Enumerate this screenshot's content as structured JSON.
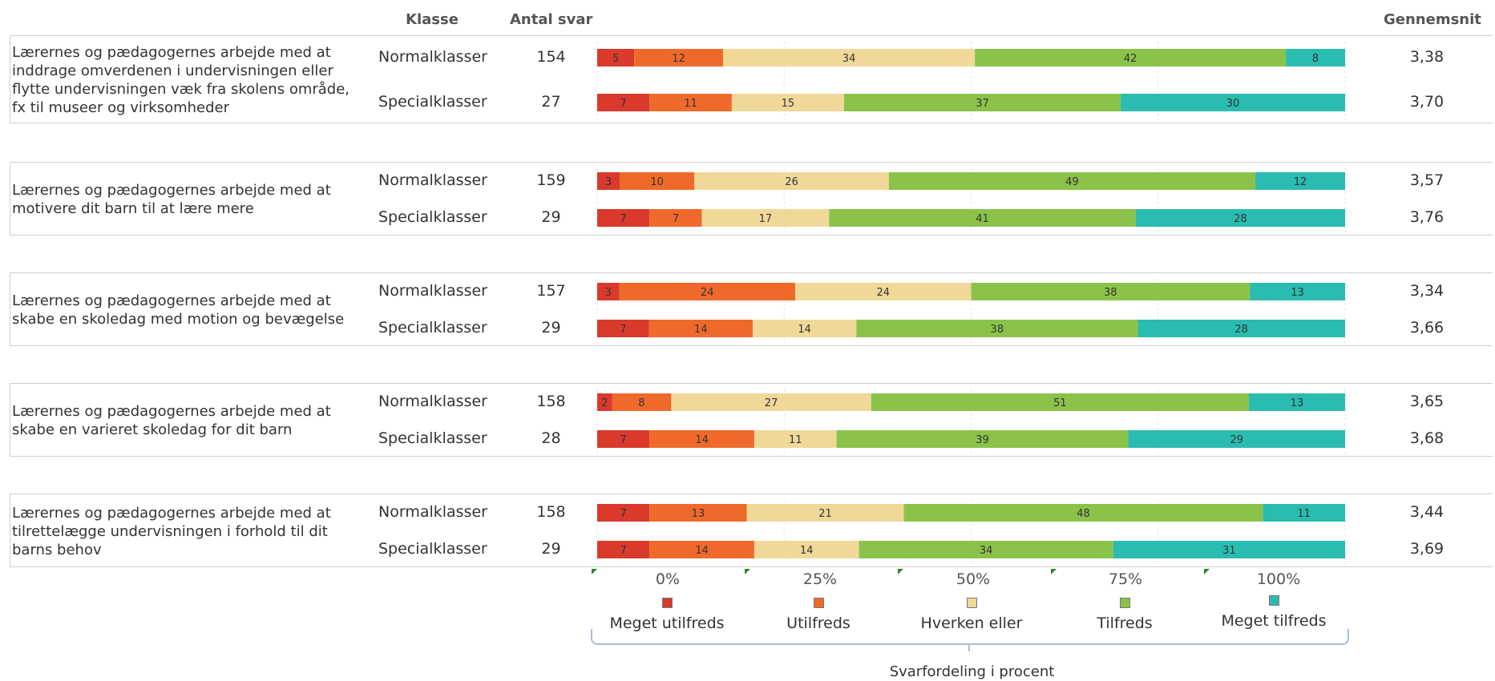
{
  "headers": {
    "klasse": "Klasse",
    "antal_svar": "Antal svar",
    "gennemsnit": "Gennemsnit"
  },
  "chart_data": {
    "type": "bar",
    "orientation": "horizontal",
    "stacked": true,
    "xlabel": "Svarfordeling i procent",
    "ticks": [
      "0%",
      "25%",
      "50%",
      "75%",
      "100%"
    ],
    "xlim": [
      0,
      100
    ],
    "grid": true,
    "legend_placement": "bottom",
    "series_names": [
      "Meget utilfreds",
      "Utilfreds",
      "Hverken eller",
      "Tilfreds",
      "Meget tilfreds"
    ],
    "colors": [
      "#d93a2b",
      "#ef6a2a",
      "#f0d898",
      "#8bc34a",
      "#2abcb0"
    ],
    "questions": [
      {
        "text": "Lærernes og pædagogernes arbejde med at inddrage omverdenen i undervisningen eller flytte undervisningen væk fra skolens område, fx til museer og virksomheder",
        "rows": [
          {
            "klasse": "Normalklasser",
            "antal": "154",
            "values": [
              5,
              12,
              34,
              42,
              8
            ],
            "gennemsnit": "3,38"
          },
          {
            "klasse": "Specialklasser",
            "antal": "27",
            "values": [
              7,
              11,
              15,
              37,
              30
            ],
            "gennemsnit": "3,70"
          }
        ]
      },
      {
        "text": "Lærernes og pædagogernes arbejde med at motivere dit barn til at lære mere",
        "rows": [
          {
            "klasse": "Normalklasser",
            "antal": "159",
            "values": [
              3,
              10,
              26,
              49,
              12
            ],
            "gennemsnit": "3,57"
          },
          {
            "klasse": "Specialklasser",
            "antal": "29",
            "values": [
              7,
              7,
              17,
              41,
              28
            ],
            "gennemsnit": "3,76"
          }
        ]
      },
      {
        "text": "Lærernes og pædagogernes arbejde med at skabe en skoledag med motion og bevægelse",
        "rows": [
          {
            "klasse": "Normalklasser",
            "antal": "157",
            "values": [
              3,
              24,
              24,
              38,
              13
            ],
            "gennemsnit": "3,34"
          },
          {
            "klasse": "Specialklasser",
            "antal": "29",
            "values": [
              7,
              14,
              14,
              38,
              28
            ],
            "gennemsnit": "3,66"
          }
        ]
      },
      {
        "text": "Lærernes og pædagogernes arbejde med at skabe en varieret skoledag for dit barn",
        "rows": [
          {
            "klasse": "Normalklasser",
            "antal": "158",
            "values": [
              2,
              8,
              27,
              51,
              13
            ],
            "gennemsnit": "3,65"
          },
          {
            "klasse": "Specialklasser",
            "antal": "28",
            "values": [
              7,
              14,
              11,
              39,
              29
            ],
            "gennemsnit": "3,68"
          }
        ]
      },
      {
        "text": "Lærernes og pædagogernes arbejde med at tilrettelægge undervisningen i forhold til dit barns behov",
        "rows": [
          {
            "klasse": "Normalklasser",
            "antal": "158",
            "values": [
              7,
              13,
              21,
              48,
              11
            ],
            "gennemsnit": "3,44"
          },
          {
            "klasse": "Specialklasser",
            "antal": "29",
            "values": [
              7,
              14,
              14,
              34,
              31
            ],
            "gennemsnit": "3,69"
          }
        ]
      }
    ]
  }
}
